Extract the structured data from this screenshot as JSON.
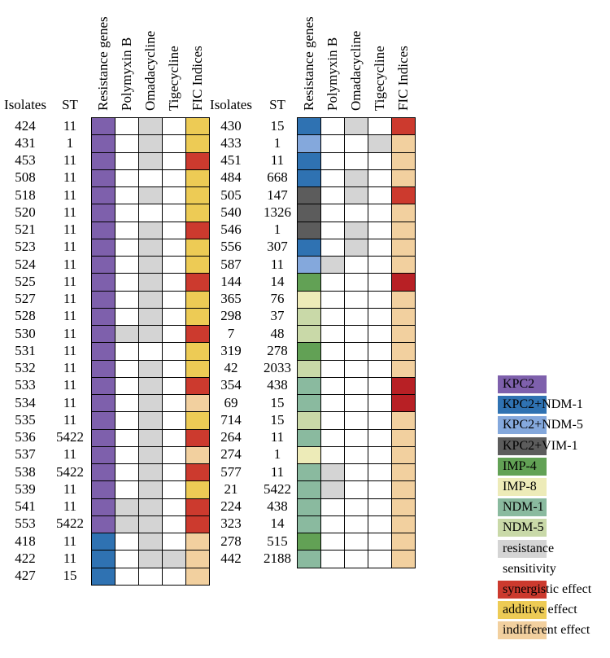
{
  "headers": {
    "isolates": "Isolates",
    "st": "ST",
    "columns": [
      "Resistance genes",
      "Polymyxin B",
      "Omadacycline",
      "Tigecycline",
      "FIC Indices"
    ]
  },
  "colors": {
    "KPC2": "#7E60AC",
    "KPC2+NDM-1": "#2F72B2",
    "KPC2+NDM-5": "#84A8DC",
    "KPC2+VIM-1": "#5C5C5C",
    "IMP-4": "#62A155",
    "IMP-8": "#EDEBB8",
    "NDM-1": "#8ABA9F",
    "NDM-5": "#C9D9A8",
    "resistance": "#D4D4D4",
    "sensitivity": "#FFFFFF",
    "synergistic": "#CC3A2E",
    "synergistic_dark": "#B82025",
    "additive": "#EDCB55",
    "indifferent": "#F2D09F"
  },
  "legend": [
    {
      "key": "KPC2",
      "label": "KPC2"
    },
    {
      "key": "KPC2+NDM-1",
      "label": "KPC2+NDM-1"
    },
    {
      "key": "KPC2+NDM-5",
      "label": "KPC2+NDM-5"
    },
    {
      "key": "KPC2+VIM-1",
      "label": "KPC2+VIM-1"
    },
    {
      "key": "IMP-4",
      "label": "IMP-4"
    },
    {
      "key": "IMP-8",
      "label": "IMP-8"
    },
    {
      "key": "NDM-1",
      "label": "NDM-1"
    },
    {
      "key": "NDM-5",
      "label": "NDM-5"
    },
    {
      "key": "resistance",
      "label": "resistance"
    },
    {
      "key": "sensitivity",
      "label": "sensitivity"
    },
    {
      "key": "synergistic",
      "label": "synergistic effect"
    },
    {
      "key": "additive",
      "label": "additive effect"
    },
    {
      "key": "indifferent",
      "label": "indifferent effect"
    }
  ],
  "tables": [
    {
      "rows": [
        {
          "isolate": "424",
          "st": "11",
          "gene": "KPC2",
          "polymyxin": "S",
          "omadacycline": "R",
          "tigecycline": "S",
          "fic": "additive"
        },
        {
          "isolate": "431",
          "st": "1",
          "gene": "KPC2",
          "polymyxin": "S",
          "omadacycline": "R",
          "tigecycline": "S",
          "fic": "additive"
        },
        {
          "isolate": "453",
          "st": "11",
          "gene": "KPC2",
          "polymyxin": "S",
          "omadacycline": "R",
          "tigecycline": "S",
          "fic": "synergistic"
        },
        {
          "isolate": "508",
          "st": "11",
          "gene": "KPC2",
          "polymyxin": "S",
          "omadacycline": "S",
          "tigecycline": "S",
          "fic": "additive"
        },
        {
          "isolate": "518",
          "st": "11",
          "gene": "KPC2",
          "polymyxin": "S",
          "omadacycline": "R",
          "tigecycline": "S",
          "fic": "additive"
        },
        {
          "isolate": "520",
          "st": "11",
          "gene": "KPC2",
          "polymyxin": "S",
          "omadacycline": "S",
          "tigecycline": "S",
          "fic": "additive"
        },
        {
          "isolate": "521",
          "st": "11",
          "gene": "KPC2",
          "polymyxin": "S",
          "omadacycline": "R",
          "tigecycline": "S",
          "fic": "synergistic"
        },
        {
          "isolate": "523",
          "st": "11",
          "gene": "KPC2",
          "polymyxin": "S",
          "omadacycline": "R",
          "tigecycline": "S",
          "fic": "additive"
        },
        {
          "isolate": "524",
          "st": "11",
          "gene": "KPC2",
          "polymyxin": "S",
          "omadacycline": "R",
          "tigecycline": "S",
          "fic": "additive"
        },
        {
          "isolate": "525",
          "st": "11",
          "gene": "KPC2",
          "polymyxin": "S",
          "omadacycline": "R",
          "tigecycline": "S",
          "fic": "synergistic"
        },
        {
          "isolate": "527",
          "st": "11",
          "gene": "KPC2",
          "polymyxin": "S",
          "omadacycline": "R",
          "tigecycline": "S",
          "fic": "additive"
        },
        {
          "isolate": "528",
          "st": "11",
          "gene": "KPC2",
          "polymyxin": "S",
          "omadacycline": "R",
          "tigecycline": "S",
          "fic": "additive"
        },
        {
          "isolate": "530",
          "st": "11",
          "gene": "KPC2",
          "polymyxin": "R",
          "omadacycline": "R",
          "tigecycline": "S",
          "fic": "synergistic"
        },
        {
          "isolate": "531",
          "st": "11",
          "gene": "KPC2",
          "polymyxin": "S",
          "omadacycline": "S",
          "tigecycline": "S",
          "fic": "additive"
        },
        {
          "isolate": "532",
          "st": "11",
          "gene": "KPC2",
          "polymyxin": "S",
          "omadacycline": "R",
          "tigecycline": "S",
          "fic": "additive"
        },
        {
          "isolate": "533",
          "st": "11",
          "gene": "KPC2",
          "polymyxin": "S",
          "omadacycline": "R",
          "tigecycline": "S",
          "fic": "synergistic"
        },
        {
          "isolate": "534",
          "st": "11",
          "gene": "KPC2",
          "polymyxin": "S",
          "omadacycline": "R",
          "tigecycline": "S",
          "fic": "indifferent"
        },
        {
          "isolate": "535",
          "st": "11",
          "gene": "KPC2",
          "polymyxin": "S",
          "omadacycline": "R",
          "tigecycline": "S",
          "fic": "additive"
        },
        {
          "isolate": "536",
          "st": "5422",
          "gene": "KPC2",
          "polymyxin": "S",
          "omadacycline": "R",
          "tigecycline": "S",
          "fic": "synergistic"
        },
        {
          "isolate": "537",
          "st": "11",
          "gene": "KPC2",
          "polymyxin": "S",
          "omadacycline": "R",
          "tigecycline": "S",
          "fic": "indifferent"
        },
        {
          "isolate": "538",
          "st": "5422",
          "gene": "KPC2",
          "polymyxin": "S",
          "omadacycline": "R",
          "tigecycline": "S",
          "fic": "synergistic"
        },
        {
          "isolate": "539",
          "st": "11",
          "gene": "KPC2",
          "polymyxin": "S",
          "omadacycline": "R",
          "tigecycline": "S",
          "fic": "additive"
        },
        {
          "isolate": "541",
          "st": "11",
          "gene": "KPC2",
          "polymyxin": "R",
          "omadacycline": "R",
          "tigecycline": "S",
          "fic": "synergistic"
        },
        {
          "isolate": "553",
          "st": "5422",
          "gene": "KPC2",
          "polymyxin": "R",
          "omadacycline": "R",
          "tigecycline": "S",
          "fic": "synergistic"
        },
        {
          "isolate": "418",
          "st": "11",
          "gene": "KPC2+NDM-1",
          "polymyxin": "S",
          "omadacycline": "R",
          "tigecycline": "S",
          "fic": "indifferent"
        },
        {
          "isolate": "422",
          "st": "11",
          "gene": "KPC2+NDM-1",
          "polymyxin": "S",
          "omadacycline": "R",
          "tigecycline": "R",
          "fic": "indifferent"
        },
        {
          "isolate": "427",
          "st": "15",
          "gene": "KPC2+NDM-1",
          "polymyxin": "S",
          "omadacycline": "S",
          "tigecycline": "S",
          "fic": "indifferent"
        }
      ]
    },
    {
      "rows": [
        {
          "isolate": "430",
          "st": "15",
          "gene": "KPC2+NDM-1",
          "polymyxin": "S",
          "omadacycline": "R",
          "tigecycline": "S",
          "fic": "synergistic"
        },
        {
          "isolate": "433",
          "st": "1",
          "gene": "KPC2+NDM-5",
          "polymyxin": "S",
          "omadacycline": "S",
          "tigecycline": "R",
          "fic": "indifferent"
        },
        {
          "isolate": "451",
          "st": "11",
          "gene": "KPC2+NDM-1",
          "polymyxin": "S",
          "omadacycline": "S",
          "tigecycline": "S",
          "fic": "indifferent"
        },
        {
          "isolate": "484",
          "st": "668",
          "gene": "KPC2+NDM-1",
          "polymyxin": "S",
          "omadacycline": "R",
          "tigecycline": "S",
          "fic": "indifferent"
        },
        {
          "isolate": "505",
          "st": "147",
          "gene": "KPC2+VIM-1",
          "polymyxin": "S",
          "omadacycline": "R",
          "tigecycline": "S",
          "fic": "synergistic"
        },
        {
          "isolate": "540",
          "st": "1326",
          "gene": "KPC2+VIM-1",
          "polymyxin": "S",
          "omadacycline": "S",
          "tigecycline": "S",
          "fic": "indifferent"
        },
        {
          "isolate": "546",
          "st": "1",
          "gene": "KPC2+VIM-1",
          "polymyxin": "S",
          "omadacycline": "R",
          "tigecycline": "S",
          "fic": "indifferent"
        },
        {
          "isolate": "556",
          "st": "307",
          "gene": "KPC2+NDM-1",
          "polymyxin": "S",
          "omadacycline": "R",
          "tigecycline": "S",
          "fic": "indifferent"
        },
        {
          "isolate": "587",
          "st": "11",
          "gene": "KPC2+NDM-5",
          "polymyxin": "R",
          "omadacycline": "S",
          "tigecycline": "S",
          "fic": "indifferent"
        },
        {
          "isolate": "144",
          "st": "14",
          "gene": "IMP-4",
          "polymyxin": "S",
          "omadacycline": "S",
          "tigecycline": "S",
          "fic": "synergistic_dark"
        },
        {
          "isolate": "365",
          "st": "76",
          "gene": "IMP-8",
          "polymyxin": "S",
          "omadacycline": "S",
          "tigecycline": "S",
          "fic": "indifferent"
        },
        {
          "isolate": "298",
          "st": "37",
          "gene": "NDM-5",
          "polymyxin": "S",
          "omadacycline": "S",
          "tigecycline": "S",
          "fic": "indifferent"
        },
        {
          "isolate": "7",
          "st": "48",
          "gene": "NDM-5",
          "polymyxin": "S",
          "omadacycline": "S",
          "tigecycline": "S",
          "fic": "indifferent"
        },
        {
          "isolate": "319",
          "st": "278",
          "gene": "IMP-4",
          "polymyxin": "S",
          "omadacycline": "S",
          "tigecycline": "S",
          "fic": "indifferent"
        },
        {
          "isolate": "42",
          "st": "2033",
          "gene": "NDM-5",
          "polymyxin": "S",
          "omadacycline": "S",
          "tigecycline": "S",
          "fic": "indifferent"
        },
        {
          "isolate": "354",
          "st": "438",
          "gene": "NDM-1",
          "polymyxin": "S",
          "omadacycline": "S",
          "tigecycline": "S",
          "fic": "synergistic_dark"
        },
        {
          "isolate": "69",
          "st": "15",
          "gene": "NDM-1",
          "polymyxin": "S",
          "omadacycline": "S",
          "tigecycline": "S",
          "fic": "synergistic_dark"
        },
        {
          "isolate": "714",
          "st": "15",
          "gene": "NDM-5",
          "polymyxin": "S",
          "omadacycline": "S",
          "tigecycline": "S",
          "fic": "indifferent"
        },
        {
          "isolate": "264",
          "st": "11",
          "gene": "NDM-1",
          "polymyxin": "S",
          "omadacycline": "S",
          "tigecycline": "S",
          "fic": "indifferent"
        },
        {
          "isolate": "274",
          "st": "1",
          "gene": "IMP-8",
          "polymyxin": "S",
          "omadacycline": "S",
          "tigecycline": "S",
          "fic": "indifferent"
        },
        {
          "isolate": "577",
          "st": "11",
          "gene": "NDM-1",
          "polymyxin": "R",
          "omadacycline": "S",
          "tigecycline": "S",
          "fic": "indifferent"
        },
        {
          "isolate": "21",
          "st": "5422",
          "gene": "NDM-1",
          "polymyxin": "R",
          "omadacycline": "S",
          "tigecycline": "S",
          "fic": "indifferent"
        },
        {
          "isolate": "224",
          "st": "438",
          "gene": "NDM-1",
          "polymyxin": "S",
          "omadacycline": "S",
          "tigecycline": "S",
          "fic": "indifferent"
        },
        {
          "isolate": "323",
          "st": "14",
          "gene": "NDM-1",
          "polymyxin": "S",
          "omadacycline": "S",
          "tigecycline": "S",
          "fic": "indifferent"
        },
        {
          "isolate": "278",
          "st": "515",
          "gene": "IMP-4",
          "polymyxin": "S",
          "omadacycline": "S",
          "tigecycline": "S",
          "fic": "indifferent"
        },
        {
          "isolate": "442",
          "st": "2188",
          "gene": "NDM-1",
          "polymyxin": "S",
          "omadacycline": "S",
          "tigecycline": "S",
          "fic": "indifferent"
        }
      ]
    }
  ]
}
